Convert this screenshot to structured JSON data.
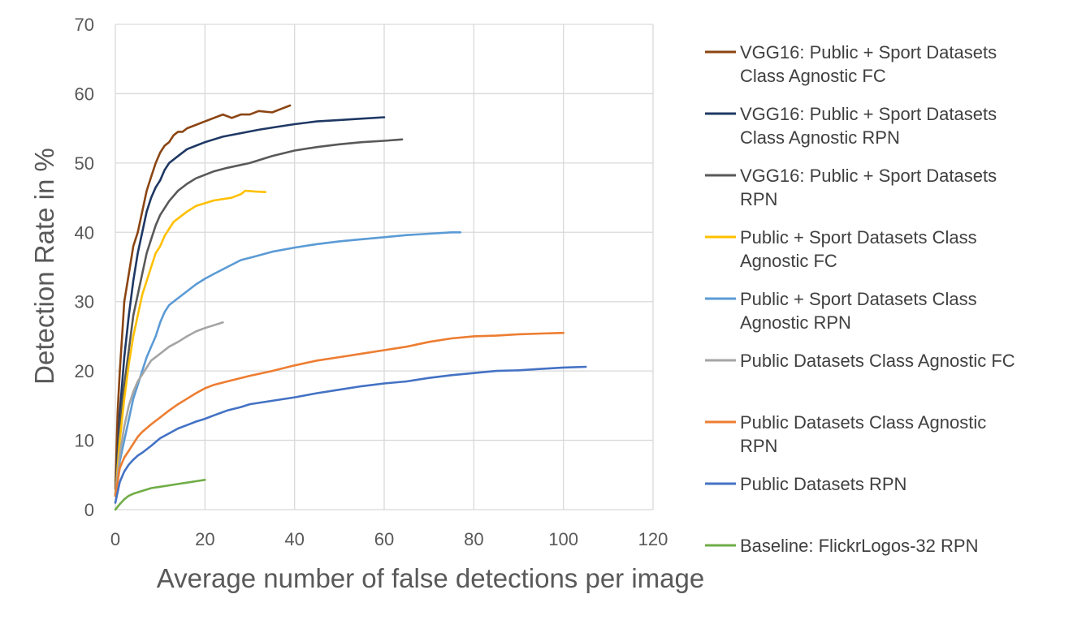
{
  "chart_data": {
    "type": "line",
    "title": "",
    "xlabel": "Average number of false detections per image",
    "ylabel": "Detection Rate in %",
    "xlim": [
      0,
      120
    ],
    "ylim": [
      0,
      70
    ],
    "xticks": [
      0,
      20,
      40,
      60,
      80,
      100,
      120
    ],
    "yticks": [
      0,
      10,
      20,
      30,
      40,
      50,
      60,
      70
    ],
    "grid": true,
    "legend_position": "right",
    "series": [
      {
        "name": "VGG16: Public + Sport Datasets Class Agnostic FC",
        "name_lines": [
          "VGG16: Public + Sport Datasets",
          "Class Agnostic FC"
        ],
        "color": "#8B4513",
        "points": [
          [
            0,
            3
          ],
          [
            0.5,
            14
          ],
          [
            1,
            20
          ],
          [
            1.5,
            25
          ],
          [
            2,
            30
          ],
          [
            3,
            34
          ],
          [
            4,
            38
          ],
          [
            5,
            40
          ],
          [
            6,
            43
          ],
          [
            7,
            46
          ],
          [
            8,
            48
          ],
          [
            9,
            50
          ],
          [
            10,
            51.5
          ],
          [
            11,
            52.5
          ],
          [
            12,
            53
          ],
          [
            13,
            54
          ],
          [
            14,
            54.5
          ],
          [
            15,
            54.5
          ],
          [
            16,
            55
          ],
          [
            18,
            55.5
          ],
          [
            20,
            56
          ],
          [
            22,
            56.5
          ],
          [
            24,
            57
          ],
          [
            26,
            56.5
          ],
          [
            28,
            57
          ],
          [
            30,
            57
          ],
          [
            32,
            57.5
          ],
          [
            35,
            57.3
          ],
          [
            37,
            57.8
          ],
          [
            39,
            58.3
          ]
        ]
      },
      {
        "name": "VGG16: Public + Sport Datasets Class Agnostic RPN",
        "name_lines": [
          "VGG16: Public + Sport Datasets",
          "Class Agnostic RPN"
        ],
        "color": "#1F3864",
        "points": [
          [
            0,
            2
          ],
          [
            1,
            14
          ],
          [
            2,
            22
          ],
          [
            3,
            28
          ],
          [
            4,
            33
          ],
          [
            5,
            37
          ],
          [
            6,
            40
          ],
          [
            7,
            43
          ],
          [
            8,
            45
          ],
          [
            9,
            46.5
          ],
          [
            10,
            47.5
          ],
          [
            11,
            49
          ],
          [
            12,
            50
          ],
          [
            14,
            51
          ],
          [
            16,
            52
          ],
          [
            18,
            52.5
          ],
          [
            20,
            53
          ],
          [
            24,
            53.8
          ],
          [
            28,
            54.3
          ],
          [
            32,
            54.8
          ],
          [
            36,
            55.2
          ],
          [
            40,
            55.6
          ],
          [
            45,
            56
          ],
          [
            50,
            56.2
          ],
          [
            55,
            56.4
          ],
          [
            60,
            56.6
          ]
        ]
      },
      {
        "name": "VGG16: Public + Sport Datasets RPN",
        "name_lines": [
          "VGG16: Public + Sport Datasets",
          "RPN"
        ],
        "color": "#595959",
        "points": [
          [
            0,
            2
          ],
          [
            1,
            12
          ],
          [
            2,
            18
          ],
          [
            3,
            23
          ],
          [
            4,
            28
          ],
          [
            5,
            31
          ],
          [
            6,
            34
          ],
          [
            7,
            37
          ],
          [
            8,
            39
          ],
          [
            9,
            41
          ],
          [
            10,
            42.5
          ],
          [
            12,
            44.5
          ],
          [
            14,
            46
          ],
          [
            16,
            47
          ],
          [
            18,
            47.8
          ],
          [
            20,
            48.3
          ],
          [
            22,
            48.8
          ],
          [
            25,
            49.3
          ],
          [
            30,
            50
          ],
          [
            35,
            51
          ],
          [
            40,
            51.8
          ],
          [
            45,
            52.3
          ],
          [
            50,
            52.7
          ],
          [
            55,
            53
          ],
          [
            60,
            53.2
          ],
          [
            64,
            53.4
          ]
        ]
      },
      {
        "name": "Public + Sport Datasets Class Agnostic FC",
        "name_lines": [
          "Public + Sport Datasets Class",
          "Agnostic FC"
        ],
        "color": "#FFC000",
        "points": [
          [
            0,
            2
          ],
          [
            1,
            10
          ],
          [
            2,
            16
          ],
          [
            3,
            21
          ],
          [
            4,
            25
          ],
          [
            5,
            28
          ],
          [
            6,
            31
          ],
          [
            7,
            33
          ],
          [
            8,
            35
          ],
          [
            9,
            37
          ],
          [
            10,
            38
          ],
          [
            11,
            39.5
          ],
          [
            12,
            40.5
          ],
          [
            13,
            41.5
          ],
          [
            14,
            42
          ],
          [
            16,
            43
          ],
          [
            18,
            43.8
          ],
          [
            20,
            44.2
          ],
          [
            22,
            44.6
          ],
          [
            24,
            44.8
          ],
          [
            26,
            45
          ],
          [
            28,
            45.5
          ],
          [
            29,
            46
          ],
          [
            31,
            45.9
          ],
          [
            33.5,
            45.8
          ]
        ]
      },
      {
        "name": "Public + Sport Datasets Class Agnostic RPN",
        "name_lines": [
          "Public + Sport Datasets Class",
          "Agnostic RPN"
        ],
        "color": "#5B9BD5",
        "points": [
          [
            0,
            2
          ],
          [
            1,
            7
          ],
          [
            2,
            10
          ],
          [
            3,
            13
          ],
          [
            4,
            16
          ],
          [
            5,
            18
          ],
          [
            6,
            20
          ],
          [
            7,
            22
          ],
          [
            8,
            23.5
          ],
          [
            9,
            25
          ],
          [
            10,
            27
          ],
          [
            11,
            28.5
          ],
          [
            12,
            29.5
          ],
          [
            14,
            30.5
          ],
          [
            16,
            31.5
          ],
          [
            18,
            32.5
          ],
          [
            20,
            33.3
          ],
          [
            22,
            34
          ],
          [
            25,
            35
          ],
          [
            28,
            36
          ],
          [
            31,
            36.5
          ],
          [
            35,
            37.2
          ],
          [
            40,
            37.8
          ],
          [
            45,
            38.3
          ],
          [
            50,
            38.7
          ],
          [
            55,
            39
          ],
          [
            60,
            39.3
          ],
          [
            65,
            39.6
          ],
          [
            70,
            39.8
          ],
          [
            75,
            40
          ],
          [
            77,
            40
          ]
        ]
      },
      {
        "name": "Public Datasets Class Agnostic FC",
        "name_lines": [
          "Public Datasets Class Agnostic FC"
        ],
        "color": "#A5A5A5",
        "points": [
          [
            0,
            2
          ],
          [
            1,
            8
          ],
          [
            2,
            12
          ],
          [
            3,
            15
          ],
          [
            4,
            17
          ],
          [
            5,
            18.5
          ],
          [
            6,
            19.5
          ],
          [
            7,
            20.5
          ],
          [
            8,
            21.5
          ],
          [
            10,
            22.5
          ],
          [
            12,
            23.5
          ],
          [
            14,
            24.2
          ],
          [
            16,
            25
          ],
          [
            18,
            25.7
          ],
          [
            20,
            26.2
          ],
          [
            22,
            26.6
          ],
          [
            24,
            27
          ]
        ]
      },
      {
        "name": "Public Datasets Class Agnostic RPN",
        "name_lines": [
          "Public Datasets Class Agnostic",
          "RPN"
        ],
        "color": "#ED7D31",
        "points": [
          [
            0,
            2
          ],
          [
            1,
            6
          ],
          [
            2,
            7.5
          ],
          [
            3,
            8.5
          ],
          [
            4,
            9.5
          ],
          [
            5,
            10.5
          ],
          [
            6,
            11.2
          ],
          [
            8,
            12.3
          ],
          [
            10,
            13.3
          ],
          [
            12,
            14.3
          ],
          [
            14,
            15.2
          ],
          [
            16,
            16
          ],
          [
            18,
            16.8
          ],
          [
            20,
            17.5
          ],
          [
            22,
            18
          ],
          [
            25,
            18.5
          ],
          [
            30,
            19.3
          ],
          [
            35,
            20
          ],
          [
            40,
            20.8
          ],
          [
            45,
            21.5
          ],
          [
            50,
            22
          ],
          [
            55,
            22.5
          ],
          [
            60,
            23
          ],
          [
            65,
            23.5
          ],
          [
            70,
            24.2
          ],
          [
            75,
            24.7
          ],
          [
            80,
            25
          ],
          [
            85,
            25.1
          ],
          [
            90,
            25.3
          ],
          [
            95,
            25.4
          ],
          [
            100,
            25.5
          ]
        ]
      },
      {
        "name": "Public Datasets RPN",
        "name_lines": [
          "Public Datasets RPN"
        ],
        "color": "#4472C4",
        "points": [
          [
            0,
            1
          ],
          [
            1,
            4
          ],
          [
            2,
            5.5
          ],
          [
            3,
            6.5
          ],
          [
            4,
            7.2
          ],
          [
            5,
            7.8
          ],
          [
            6,
            8.2
          ],
          [
            8,
            9.2
          ],
          [
            10,
            10.3
          ],
          [
            12,
            11
          ],
          [
            14,
            11.7
          ],
          [
            16,
            12.2
          ],
          [
            18,
            12.7
          ],
          [
            20,
            13.1
          ],
          [
            22,
            13.6
          ],
          [
            25,
            14.3
          ],
          [
            28,
            14.8
          ],
          [
            30,
            15.2
          ],
          [
            35,
            15.7
          ],
          [
            40,
            16.2
          ],
          [
            45,
            16.8
          ],
          [
            50,
            17.3
          ],
          [
            55,
            17.8
          ],
          [
            60,
            18.2
          ],
          [
            65,
            18.5
          ],
          [
            70,
            19
          ],
          [
            75,
            19.4
          ],
          [
            80,
            19.7
          ],
          [
            85,
            20
          ],
          [
            90,
            20.1
          ],
          [
            95,
            20.3
          ],
          [
            100,
            20.5
          ],
          [
            105,
            20.6
          ]
        ]
      },
      {
        "name": "Baseline: FlickrLogos-32 RPN",
        "name_lines": [
          "Baseline: FlickrLogos-32 RPN"
        ],
        "color": "#70AD47",
        "points": [
          [
            0,
            0
          ],
          [
            1,
            0.8
          ],
          [
            2,
            1.5
          ],
          [
            3,
            2
          ],
          [
            4,
            2.3
          ],
          [
            5,
            2.5
          ],
          [
            6,
            2.7
          ],
          [
            7,
            2.9
          ],
          [
            8,
            3.1
          ],
          [
            10,
            3.3
          ],
          [
            12,
            3.5
          ],
          [
            14,
            3.7
          ],
          [
            16,
            3.9
          ],
          [
            18,
            4.1
          ],
          [
            20,
            4.3
          ]
        ]
      }
    ]
  }
}
